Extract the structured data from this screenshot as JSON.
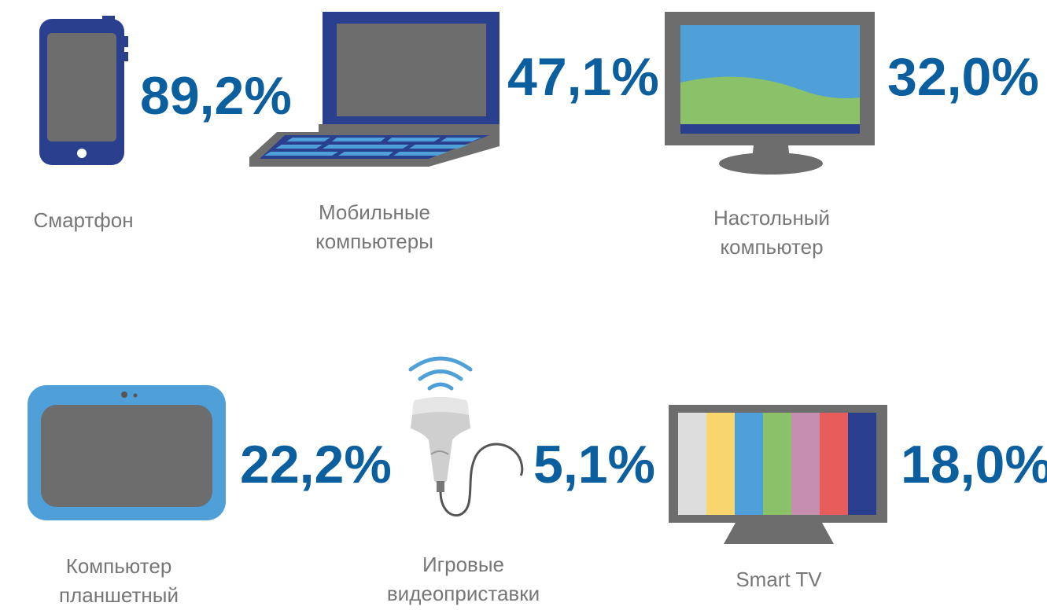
{
  "items": [
    {
      "value": "89,2%",
      "label": [
        "Смартфон"
      ]
    },
    {
      "value": "47,1%",
      "label": [
        "Мобильные",
        "компьютеры"
      ]
    },
    {
      "value": "32,0%",
      "label": [
        "Настольный",
        "компьютер"
      ]
    },
    {
      "value": "22,2%",
      "label": [
        "Компьютер",
        "планшетный"
      ]
    },
    {
      "value": "5,1%",
      "label": [
        "Игровые",
        "видеоприставки"
      ]
    },
    {
      "value": "18,0%",
      "label": [
        "Smart TV"
      ]
    }
  ]
}
